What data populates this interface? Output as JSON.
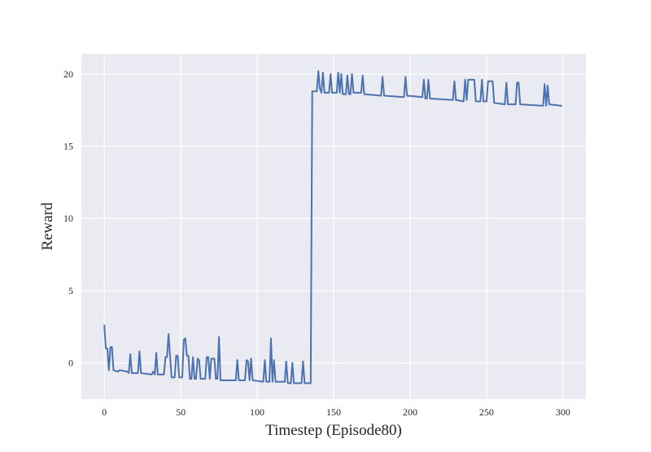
{
  "chart_data": {
    "type": "line",
    "title": "",
    "xlabel": "Timestep (Episode80)",
    "ylabel": "Reward",
    "xlim": [
      -15,
      315
    ],
    "ylim": [
      -2.5,
      21.4
    ],
    "xticks": [
      0,
      50,
      100,
      150,
      200,
      250,
      300
    ],
    "yticks": [
      0,
      5,
      10,
      15,
      20
    ],
    "grid": true,
    "legend": "none",
    "colors": {
      "plot_background": "#eaeaf2",
      "grid": "#ffffff",
      "series": "#4c72b0"
    },
    "series": [
      {
        "color": "#4c72b0",
        "points": [
          [
            0,
            2.6
          ],
          [
            1,
            1.0
          ],
          [
            2,
            1.0
          ],
          [
            3,
            -0.5
          ],
          [
            4,
            1.1
          ],
          [
            5,
            1.1
          ],
          [
            6,
            -0.5
          ],
          [
            9,
            -0.6
          ],
          [
            10,
            -0.5
          ],
          [
            15,
            -0.6
          ],
          [
            16,
            -0.7
          ],
          [
            17,
            0.6
          ],
          [
            18,
            -0.7
          ],
          [
            22,
            -0.7
          ],
          [
            23,
            0.8
          ],
          [
            24,
            -0.7
          ],
          [
            31,
            -0.8
          ],
          [
            32,
            -0.6
          ],
          [
            33,
            -0.8
          ],
          [
            34,
            0.7
          ],
          [
            35,
            -0.8
          ],
          [
            39,
            -0.8
          ],
          [
            40,
            0.4
          ],
          [
            41,
            0.4
          ],
          [
            42,
            2.0
          ],
          [
            43,
            0.5
          ],
          [
            44,
            -1.0
          ],
          [
            46,
            -1.0
          ],
          [
            47,
            0.5
          ],
          [
            48,
            0.5
          ],
          [
            49,
            -1.0
          ],
          [
            51,
            -1.0
          ],
          [
            52,
            1.6
          ],
          [
            53,
            1.7
          ],
          [
            54,
            0.5
          ],
          [
            55,
            0.5
          ],
          [
            56,
            -1.1
          ],
          [
            57,
            -1.1
          ],
          [
            58,
            0.4
          ],
          [
            59,
            -1.1
          ],
          [
            60,
            -1.1
          ],
          [
            61,
            0.3
          ],
          [
            62,
            0.2
          ],
          [
            63,
            -1.1
          ],
          [
            66,
            -1.1
          ],
          [
            67,
            0.4
          ],
          [
            68,
            0.4
          ],
          [
            69,
            -1.1
          ],
          [
            70,
            0.3
          ],
          [
            71,
            0.3
          ],
          [
            72,
            0.3
          ],
          [
            73,
            -1.1
          ],
          [
            74,
            -1.1
          ],
          [
            75,
            1.8
          ],
          [
            76,
            -1.2
          ],
          [
            86,
            -1.2
          ],
          [
            87,
            0.2
          ],
          [
            88,
            -1.2
          ],
          [
            92,
            -1.2
          ],
          [
            93,
            0.2
          ],
          [
            94,
            0.1
          ],
          [
            95,
            -1.2
          ],
          [
            96,
            0.3
          ],
          [
            97,
            -1.2
          ],
          [
            104,
            -1.3
          ],
          [
            105,
            0.2
          ],
          [
            106,
            -1.3
          ],
          [
            108,
            -1.3
          ],
          [
            109,
            1.7
          ],
          [
            110,
            -1.3
          ],
          [
            111,
            0.2
          ],
          [
            112,
            -1.3
          ],
          [
            118,
            -1.3
          ],
          [
            119,
            0.1
          ],
          [
            120,
            -1.4
          ],
          [
            122,
            -1.4
          ],
          [
            123,
            0.0
          ],
          [
            124,
            -1.4
          ],
          [
            129,
            -1.4
          ],
          [
            130,
            0.1
          ],
          [
            131,
            -1.4
          ],
          [
            135,
            -1.4
          ],
          [
            136,
            18.8
          ],
          [
            139,
            18.8
          ],
          [
            140,
            20.2
          ],
          [
            141,
            19.0
          ],
          [
            142,
            18.7
          ],
          [
            143,
            20.1
          ],
          [
            144,
            18.7
          ],
          [
            147,
            18.7
          ],
          [
            148,
            20.0
          ],
          [
            149,
            18.7
          ],
          [
            152,
            18.7
          ],
          [
            153,
            20.1
          ],
          [
            154,
            18.7
          ],
          [
            155,
            20.0
          ],
          [
            156,
            18.6
          ],
          [
            158,
            18.6
          ],
          [
            159,
            19.9
          ],
          [
            160,
            18.6
          ],
          [
            161,
            18.6
          ],
          [
            162,
            20.0
          ],
          [
            163,
            18.7
          ],
          [
            168,
            18.7
          ],
          [
            169,
            19.9
          ],
          [
            170,
            18.6
          ],
          [
            181,
            18.5
          ],
          [
            182,
            19.8
          ],
          [
            183,
            18.5
          ],
          [
            196,
            18.4
          ],
          [
            197,
            19.8
          ],
          [
            198,
            18.5
          ],
          [
            208,
            18.4
          ],
          [
            209,
            19.6
          ],
          [
            210,
            18.3
          ],
          [
            211,
            18.3
          ],
          [
            212,
            19.6
          ],
          [
            213,
            18.3
          ],
          [
            228,
            18.2
          ],
          [
            229,
            19.5
          ],
          [
            230,
            18.2
          ],
          [
            235,
            18.1
          ],
          [
            236,
            19.6
          ],
          [
            237,
            18.2
          ],
          [
            238,
            19.6
          ],
          [
            242,
            19.6
          ],
          [
            243,
            18.1
          ],
          [
            246,
            18.1
          ],
          [
            247,
            19.6
          ],
          [
            248,
            18.1
          ],
          [
            250,
            18.1
          ],
          [
            251,
            19.5
          ],
          [
            254,
            19.5
          ],
          [
            255,
            18.0
          ],
          [
            262,
            17.9
          ],
          [
            263,
            19.4
          ],
          [
            264,
            17.9
          ],
          [
            269,
            17.9
          ],
          [
            270,
            19.4
          ],
          [
            271,
            19.4
          ],
          [
            272,
            17.9
          ],
          [
            287,
            17.8
          ],
          [
            288,
            19.3
          ],
          [
            289,
            17.8
          ],
          [
            290,
            19.2
          ],
          [
            291,
            17.9
          ],
          [
            299,
            17.8
          ]
        ]
      }
    ]
  }
}
